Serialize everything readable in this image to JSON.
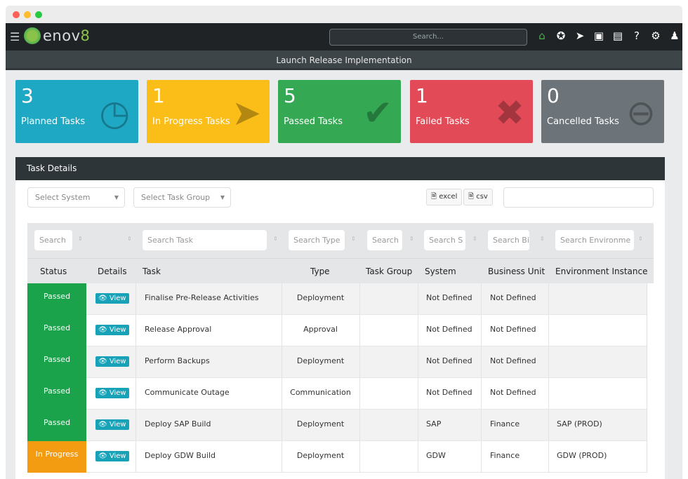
{
  "window": {
    "title_dots": [
      "#fe5f57",
      "#febc2e",
      "#28c840"
    ]
  },
  "nav": {
    "logo_text": "enov",
    "logo_suffix": "8",
    "search_placeholder": "Search...",
    "icons": [
      "home-icon",
      "star-icon",
      "rocket-icon",
      "calendar-icon",
      "presentation-icon",
      "help-icon",
      "gear-icon",
      "user-icon"
    ]
  },
  "page_title": "Launch Release Implementation",
  "cards": [
    {
      "count": "3",
      "label": "Planned Tasks",
      "color": "#1fa8c4",
      "icon": "alarm-clock-icon"
    },
    {
      "count": "1",
      "label": "In Progress Tasks",
      "color": "#fbbd18",
      "icon": "arrow-icon"
    },
    {
      "count": "5",
      "label": "Passed Tasks",
      "color": "#34a853",
      "icon": "check-icon"
    },
    {
      "count": "1",
      "label": "Failed Tasks",
      "color": "#e34a57",
      "icon": "x-icon"
    },
    {
      "count": "0",
      "label": "Cancelled Tasks",
      "color": "#6d7479",
      "icon": "minus-circle-icon"
    }
  ],
  "panel": {
    "title": "Task Details",
    "select_system": "Select System",
    "select_task_group": "Select Task Group",
    "excel": "excel",
    "csv": "csv"
  },
  "filters": [
    "Search",
    "",
    "Search Task",
    "Search Type",
    "Search",
    "Search S",
    "Search Bi",
    "Search Environme"
  ],
  "columns": [
    "Status",
    "Details",
    "Task",
    "Type",
    "Task Group",
    "System",
    "Business Unit",
    "Environment Instance"
  ],
  "view_label": "View",
  "status_colors": {
    "Passed": "#1aa34a",
    "In Progress": "#f39c12"
  },
  "rows": [
    {
      "status": "Passed",
      "task": "Finalise Pre-Release Activities",
      "type": "Deployment",
      "group": "",
      "system": "Not Defined",
      "bu": "Not Defined",
      "env": ""
    },
    {
      "status": "Passed",
      "task": "Release Approval",
      "type": "Approval",
      "group": "",
      "system": "Not Defined",
      "bu": "Not Defined",
      "env": ""
    },
    {
      "status": "Passed",
      "task": "Perform Backups",
      "type": "Deployment",
      "group": "",
      "system": "Not Defined",
      "bu": "Not Defined",
      "env": ""
    },
    {
      "status": "Passed",
      "task": "Communicate Outage",
      "type": "Communication",
      "group": "",
      "system": "Not Defined",
      "bu": "Not Defined",
      "env": ""
    },
    {
      "status": "Passed",
      "task": "Deploy SAP Build",
      "type": "Deployment",
      "group": "",
      "system": "SAP",
      "bu": "Finance",
      "env": "SAP (PROD)"
    },
    {
      "status": "In Progress",
      "task": "Deploy GDW Build",
      "type": "Deployment",
      "group": "",
      "system": "GDW",
      "bu": "Finance",
      "env": "GDW (PROD)"
    }
  ]
}
